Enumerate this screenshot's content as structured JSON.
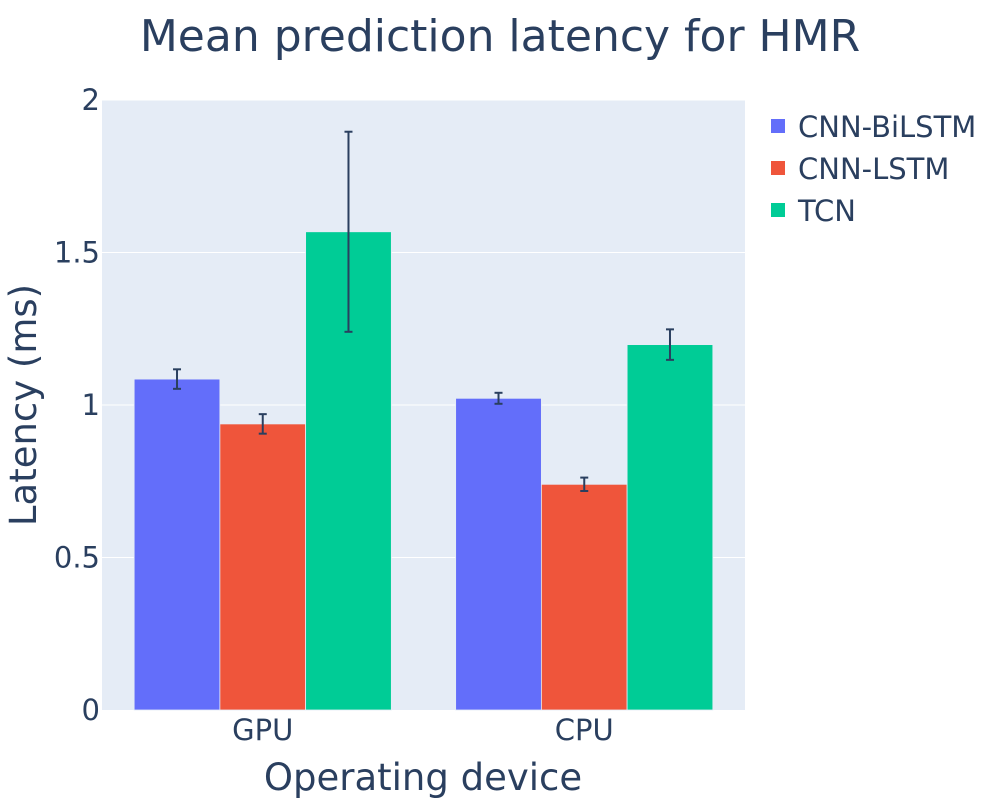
{
  "chart_data": {
    "type": "bar",
    "title": "Mean prediction latency for HMR",
    "xlabel": "Operating device",
    "ylabel": "Latency (ms)",
    "categories": [
      "GPU",
      "CPU"
    ],
    "ylim": [
      0,
      2
    ],
    "yticks": [
      {
        "value": 0,
        "label": "0"
      },
      {
        "value": 0.5,
        "label": "0.5"
      },
      {
        "value": 1,
        "label": "1"
      },
      {
        "value": 1.5,
        "label": "1.5"
      },
      {
        "value": 2,
        "label": "2"
      }
    ],
    "grid": true,
    "legend_position": "top-right",
    "series": [
      {
        "name": "CNN-BiLSTM",
        "color": "#636efa",
        "values": [
          1.085,
          1.022
        ],
        "errors": [
          0.032,
          0.018
        ]
      },
      {
        "name": "CNN-LSTM",
        "color": "#ef553b",
        "values": [
          0.938,
          0.74
        ],
        "errors": [
          0.032,
          0.022
        ]
      },
      {
        "name": "TCN",
        "color": "#00cc96",
        "values": [
          1.568,
          1.198
        ],
        "errors": [
          0.328,
          0.05
        ]
      }
    ]
  }
}
